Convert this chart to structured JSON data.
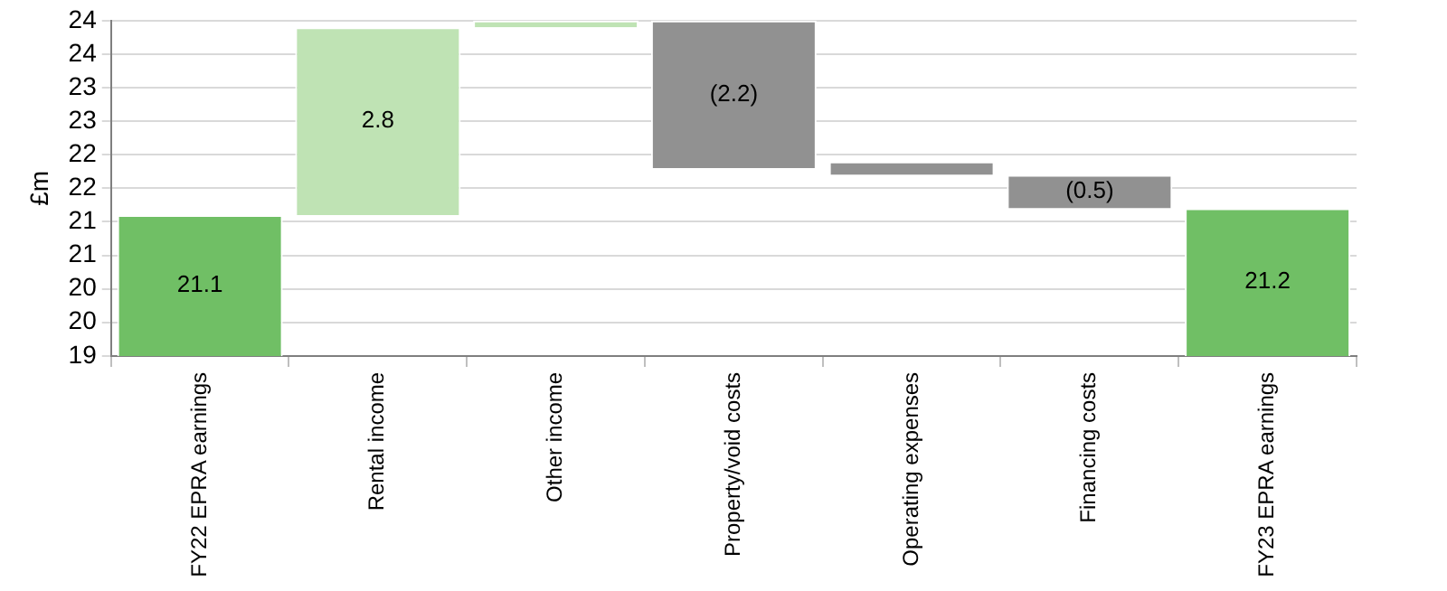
{
  "chart_data": {
    "type": "bar",
    "categories": [
      "FY22 EPRA earnings",
      "Rental income",
      "Other income",
      "Property/void costs",
      "Operating expenses",
      "Financing costs",
      "FY23 EPRA earnings"
    ],
    "values": [
      21.1,
      2.8,
      0.1,
      -2.2,
      -0.2,
      -0.5,
      21.2
    ],
    "base": [
      0,
      21.1,
      23.9,
      24.0,
      21.9,
      21.7,
      0
    ],
    "colors": [
      "#70bf65",
      "#bfe3b4",
      "#bfe3b4",
      "#919191",
      "#919191",
      "#919191",
      "#70bf65"
    ],
    "value_labels": [
      "21.1",
      "2.8",
      null,
      "(2.2)",
      null,
      "(0.5)",
      "21.2"
    ],
    "ylabel": "£m",
    "ylim": [
      19,
      24
    ],
    "yticks": [
      19,
      {
        "value": 19.5,
        "label": "20"
      },
      20,
      {
        "value": 20.5,
        "label": "21"
      },
      21,
      {
        "value": 21.5,
        "label": "22"
      },
      22,
      {
        "value": 22.5,
        "label": "23"
      },
      23,
      {
        "value": 23.5,
        "label": "24"
      },
      24
    ],
    "grid": "y",
    "legend": false
  }
}
